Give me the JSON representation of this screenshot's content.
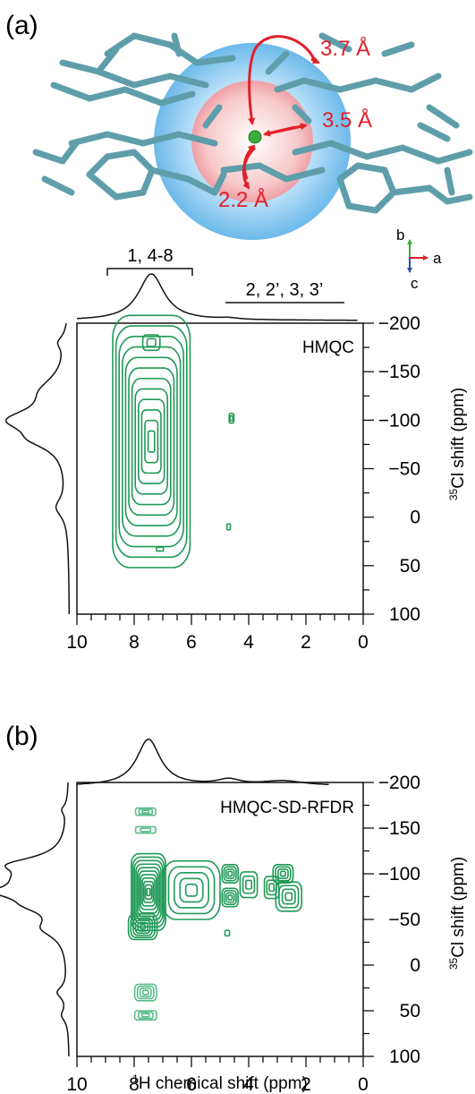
{
  "panel_a": {
    "label": "(a)",
    "distances": [
      "3.7 Å",
      "3.5 Å",
      "2.2 Å"
    ],
    "axes_triad": {
      "b": "b",
      "a": "a",
      "c": "c"
    },
    "colors": {
      "molecule": "#5e9eaa",
      "distance": "#e0202a",
      "outer_sphere": "#7ec3ee",
      "inner_sphere": "#f4b4b8",
      "chlorine_atom": "#3dac3a",
      "contour": "#1f9a55"
    }
  },
  "chart_data": [
    {
      "type": "heatmap",
      "panel": "(a)",
      "title": "HMQC",
      "xlabel": "",
      "ylabel_sup": "35",
      "ylabel_main": "Cl shift (ppm)",
      "xlim": [
        10,
        0
      ],
      "ylim": [
        -200,
        100
      ],
      "xticks": [
        10,
        8,
        6,
        4,
        2,
        0
      ],
      "yticks": [
        -200,
        -150,
        -100,
        -50,
        0,
        50,
        100
      ],
      "annotations": [
        {
          "text": "1, 4-8",
          "x_range": [
            9,
            6
          ]
        },
        {
          "text": "2, 2’, 3, 3’",
          "x_range": [
            5,
            0.5
          ]
        }
      ],
      "peaks": [
        {
          "x": 7.4,
          "y": -78,
          "wx": 1.35,
          "wy": 130,
          "levels": 12
        },
        {
          "x": 7.4,
          "y": -180,
          "wx": 0.3,
          "wy": 8,
          "levels": 2
        },
        {
          "x": 4.6,
          "y": -102,
          "wx": 0.08,
          "wy": 5,
          "levels": 2
        },
        {
          "x": 4.7,
          "y": 10,
          "wx": 0.06,
          "wy": 3,
          "levels": 1
        },
        {
          "x": 7.1,
          "y": 33,
          "wx": 0.12,
          "wy": 2,
          "levels": 1
        }
      ],
      "f2_projection": [
        {
          "x": 7.4,
          "h": 1.0,
          "w": 0.55
        },
        {
          "x": 4.7,
          "h": 0.03,
          "w": 0.4
        }
      ],
      "f1_projection": [
        {
          "y": -100,
          "h": 1.0,
          "w": 14
        },
        {
          "y": -80,
          "h": 0.45,
          "w": 12
        },
        {
          "y": -130,
          "h": 0.4,
          "w": 18
        },
        {
          "y": -10,
          "h": 0.22,
          "w": 12
        },
        {
          "y": -180,
          "h": 0.15,
          "w": 8
        }
      ]
    },
    {
      "type": "heatmap",
      "panel": "(b)",
      "title": "HMQC-SD-RFDR",
      "xlabel_sup": "1",
      "xlabel_main": "H chemical shift (ppm)",
      "ylabel_sup": "35",
      "ylabel_main": "Cl shift (ppm)",
      "xlim": [
        10,
        0
      ],
      "ylim": [
        -200,
        100
      ],
      "xticks": [
        10,
        8,
        6,
        4,
        2,
        0
      ],
      "yticks": [
        -200,
        -150,
        -100,
        -50,
        0,
        50,
        100
      ],
      "peaks": [
        {
          "x": 7.5,
          "y": -80,
          "wx": 0.6,
          "wy": 42,
          "levels": 11
        },
        {
          "x": 6.0,
          "y": -82,
          "wx": 1.0,
          "wy": 32,
          "levels": 5
        },
        {
          "x": 7.7,
          "y": -42,
          "wx": 0.5,
          "wy": 14,
          "levels": 6
        },
        {
          "x": 4.65,
          "y": -100,
          "wx": 0.28,
          "wy": 10,
          "levels": 4
        },
        {
          "x": 4.65,
          "y": -74,
          "wx": 0.28,
          "wy": 10,
          "levels": 4
        },
        {
          "x": 4.0,
          "y": -88,
          "wx": 0.3,
          "wy": 14,
          "levels": 3
        },
        {
          "x": 2.8,
          "y": -100,
          "wx": 0.35,
          "wy": 10,
          "levels": 4
        },
        {
          "x": 2.6,
          "y": -75,
          "wx": 0.45,
          "wy": 16,
          "levels": 4
        },
        {
          "x": 3.2,
          "y": -85,
          "wx": 0.25,
          "wy": 12,
          "levels": 3
        },
        {
          "x": 4.75,
          "y": -35,
          "wx": 0.08,
          "wy": 3,
          "levels": 1
        },
        {
          "x": 7.6,
          "y": -168,
          "wx": 0.35,
          "wy": 4,
          "levels": 3
        },
        {
          "x": 7.6,
          "y": -148,
          "wx": 0.35,
          "wy": 3.5,
          "levels": 2
        },
        {
          "x": 7.6,
          "y": 30,
          "wx": 0.38,
          "wy": 9,
          "levels": 4
        },
        {
          "x": 7.6,
          "y": 55,
          "wx": 0.38,
          "wy": 5,
          "levels": 3
        }
      ],
      "f2_projection": [
        {
          "x": 7.5,
          "h": 1.0,
          "w": 0.5
        },
        {
          "x": 4.7,
          "h": 0.12,
          "w": 0.5
        },
        {
          "x": 2.8,
          "h": 0.1,
          "w": 0.9
        }
      ],
      "f1_projection": [
        {
          "y": -110,
          "h": 0.9,
          "w": 10
        },
        {
          "y": -80,
          "h": 1.0,
          "w": 10
        },
        {
          "y": -95,
          "h": 0.5,
          "w": 12
        },
        {
          "y": -65,
          "h": 0.45,
          "w": 10
        },
        {
          "y": -40,
          "h": 0.4,
          "w": 12
        },
        {
          "y": 30,
          "h": 0.2,
          "w": 8
        },
        {
          "y": 55,
          "h": 0.12,
          "w": 8
        },
        {
          "y": -170,
          "h": 0.1,
          "w": 6
        }
      ]
    }
  ]
}
